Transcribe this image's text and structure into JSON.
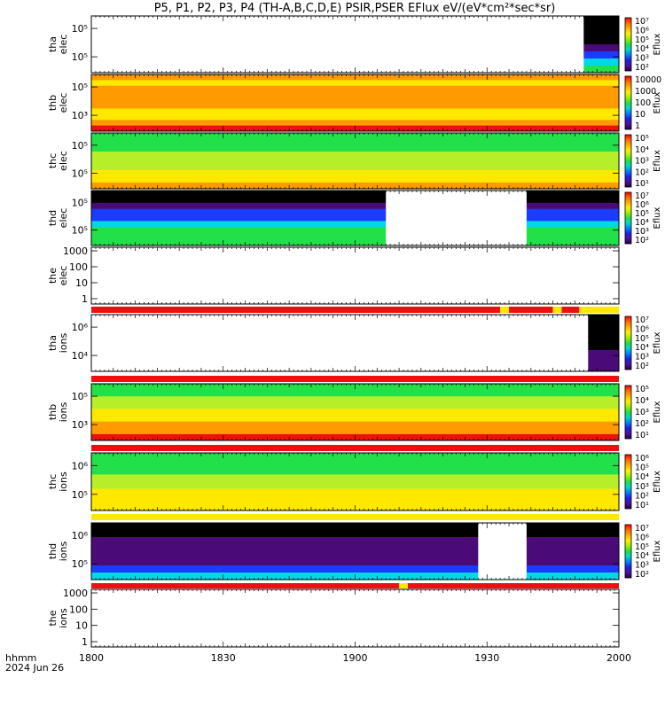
{
  "chart_data": {
    "type": "heatmap",
    "title": "P5, P1, P2, P3, P4 (TH-A,B,C,D,E) PSIR,PSER EFlux eV/(eV*cm²*sec*sr)",
    "xlabel_line1": "hhmm",
    "xlabel_line2": "2024 Jun 26",
    "x_ticks": [
      "1800",
      "1830",
      "1900",
      "1930",
      "2000"
    ],
    "xlim_minutes": [
      0,
      120
    ],
    "colorbar_label": "Eflux",
    "palette": "rainbow (black-purple-blue-cyan-green-yellow-orange-red)",
    "panels": [
      {
        "name": "tha elec",
        "label1": "tha",
        "label2": "elec",
        "yticks": [
          "10⁵",
          "10⁵"
        ],
        "colorbar_ticks": [
          "10⁷",
          "10⁶",
          "10⁵",
          "10⁴",
          "10³",
          "10²"
        ],
        "coverage_minutes": [
          112,
          120
        ],
        "bands": [
          "black",
          "black",
          "black",
          "black",
          "purple",
          "blue",
          "cyan",
          "green"
        ]
      },
      {
        "name": "thb elec",
        "label1": "thb",
        "label2": "elec",
        "yticks": [
          "10⁵",
          "10³"
        ],
        "colorbar_ticks": [
          "10000",
          "1000",
          "100",
          "10",
          "1"
        ],
        "coverage_minutes": [
          0,
          120
        ],
        "bands": [
          "orange",
          "yellow",
          "orange",
          "orange",
          "orange",
          "orange",
          "yellow",
          "yellow",
          "orange",
          "red"
        ]
      },
      {
        "name": "thc elec",
        "label1": "thc",
        "label2": "elec",
        "yticks": [
          "10⁵",
          "10⁵"
        ],
        "colorbar_ticks": [
          "10⁵",
          "10⁴",
          "10³",
          "10²",
          "10¹"
        ],
        "coverage_minutes": [
          0,
          120
        ],
        "bands": [
          "green",
          "green",
          "green",
          "yellowgreen",
          "yellowgreen",
          "yellowgreen",
          "yellow",
          "yellow",
          "orange"
        ]
      },
      {
        "name": "thd elec",
        "label1": "thd",
        "label2": "elec",
        "yticks": [
          "10⁵",
          "10⁵"
        ],
        "colorbar_ticks": [
          "10⁷",
          "10⁶",
          "10⁵",
          "10⁴",
          "10³",
          "10²"
        ],
        "data_gap_minutes": [
          67,
          99
        ],
        "bands": [
          "black",
          "black",
          "purple",
          "blue",
          "blue",
          "cyan",
          "green",
          "green",
          "green"
        ]
      },
      {
        "name": "the elec",
        "label1": "the",
        "label2": "elec",
        "yticks": [
          "1000",
          "100",
          "10",
          "1"
        ],
        "empty": true
      },
      {
        "name": "tha ions",
        "label1": "tha",
        "label2": "ions",
        "yticks": [
          "10⁶",
          "10⁴"
        ],
        "colorbar_ticks": [
          "10⁷",
          "10⁶",
          "10⁵",
          "10⁴",
          "10³",
          "10²"
        ],
        "coverage_minutes": [
          113,
          120
        ],
        "bands": [
          "black",
          "black",
          "black",
          "black",
          "black",
          "purple",
          "purple",
          "purple"
        ]
      },
      {
        "name": "thb ions",
        "label1": "thb",
        "label2": "ions",
        "yticks": [
          "10⁵",
          "10³"
        ],
        "colorbar_ticks": [
          "10⁵",
          "10⁴",
          "10³",
          "10²",
          "10¹"
        ],
        "coverage_minutes": [
          0,
          120
        ],
        "bands": [
          "green",
          "green",
          "yellowgreen",
          "yellowgreen",
          "yellow",
          "yellow",
          "orange",
          "orange",
          "red"
        ]
      },
      {
        "name": "thc ions",
        "label1": "thc",
        "label2": "ions",
        "yticks": [
          "10⁶",
          "10⁵"
        ],
        "colorbar_ticks": [
          "10⁶",
          "10⁵",
          "10⁴",
          "10³",
          "10²",
          "10¹"
        ],
        "coverage_minutes": [
          0,
          120
        ],
        "bands": [
          "green",
          "green",
          "green",
          "yellowgreen",
          "yellowgreen",
          "yellow",
          "yellow",
          "yellow"
        ]
      },
      {
        "name": "thd ions",
        "label1": "thd",
        "label2": "ions",
        "yticks": [
          "10⁶",
          "10⁵"
        ],
        "colorbar_ticks": [
          "10⁷",
          "10⁶",
          "10⁵",
          "10⁴",
          "10³",
          "10²"
        ],
        "data_gap_minutes": [
          88,
          99
        ],
        "bands": [
          "black",
          "black",
          "purple",
          "purple",
          "purple",
          "purple",
          "blue",
          "cyan"
        ]
      },
      {
        "name": "the ions",
        "label1": "the",
        "label2": "ions",
        "yticks": [
          "1000",
          "100",
          "10",
          "1"
        ],
        "empty": true
      }
    ],
    "mode_bars": [
      {
        "after_panel": "the elec",
        "segments": [
          {
            "from": 0,
            "to": 93,
            "color": "red"
          },
          {
            "from": 93,
            "to": 95,
            "color": "yellow"
          },
          {
            "from": 95,
            "to": 105,
            "color": "red"
          },
          {
            "from": 105,
            "to": 107,
            "color": "yellow"
          },
          {
            "from": 107,
            "to": 111,
            "color": "red"
          },
          {
            "from": 111,
            "to": 120,
            "color": "yellow"
          }
        ]
      },
      {
        "after_panel": "tha ions",
        "segments": [
          {
            "from": 0,
            "to": 120,
            "color": "red"
          }
        ]
      },
      {
        "after_panel": "thb ions",
        "segments": [
          {
            "from": 0,
            "to": 120,
            "color": "red"
          }
        ]
      },
      {
        "after_panel": "thc ions",
        "segments": [
          {
            "from": 0,
            "to": 120,
            "color": "yellow"
          }
        ]
      },
      {
        "after_panel": "thd ions",
        "segments": [
          {
            "from": 0,
            "to": 70,
            "color": "red"
          },
          {
            "from": 70,
            "to": 72,
            "color": "yellow"
          },
          {
            "from": 72,
            "to": 120,
            "color": "red"
          }
        ]
      }
    ]
  }
}
